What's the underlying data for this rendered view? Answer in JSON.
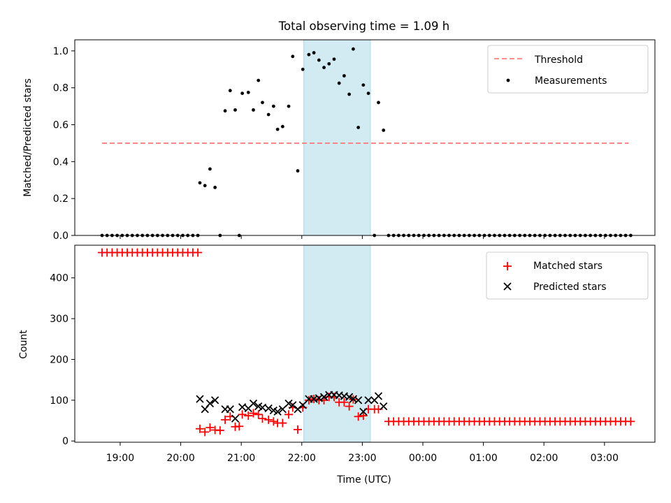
{
  "figure": {
    "title": "Total observing time = 1.09 h",
    "xlabel": "Time (UTC)",
    "colors": {
      "shade": "#add8e6",
      "threshold": "#ff7f7f",
      "measurements": "#000000",
      "matched": "#ff0000",
      "predicted": "#000000"
    }
  },
  "chart_data": [
    {
      "type": "scatter",
      "title": "Total observing time = 1.09 h",
      "xlabel": "",
      "ylabel": "Matched/Predicted stars",
      "x_range": [
        "18:15",
        "03:50"
      ],
      "ylim": [
        0,
        1.06
      ],
      "yticks": [
        0.0,
        0.2,
        0.4,
        0.6,
        0.8,
        1.0
      ],
      "ytick_labels": [
        "0.0",
        "0.2",
        "0.4",
        "0.6",
        "0.8",
        "1.0"
      ],
      "grid": false,
      "legend_position": "top-right",
      "shaded_interval": [
        "22:02",
        "23:08"
      ],
      "threshold": {
        "name": "Threshold",
        "value": 0.5,
        "x_start": "18:42",
        "x_end": "03:24",
        "style": "dashed"
      },
      "series": [
        {
          "name": "Measurements",
          "marker": "dot",
          "points": [
            [
              "18:42",
              0
            ],
            [
              "18:47",
              0
            ],
            [
              "18:52",
              0
            ],
            [
              "18:57",
              0
            ],
            [
              "19:02",
              0
            ],
            [
              "19:07",
              0
            ],
            [
              "19:12",
              0
            ],
            [
              "19:17",
              0
            ],
            [
              "19:22",
              0
            ],
            [
              "19:27",
              0
            ],
            [
              "19:32",
              0
            ],
            [
              "19:37",
              0
            ],
            [
              "19:42",
              0
            ],
            [
              "19:47",
              0
            ],
            [
              "19:52",
              0
            ],
            [
              "19:57",
              0
            ],
            [
              "20:02",
              0
            ],
            [
              "20:07",
              0
            ],
            [
              "20:12",
              0
            ],
            [
              "20:17",
              0
            ],
            [
              "20:19",
              0.285
            ],
            [
              "20:24",
              0.27
            ],
            [
              "20:29",
              0.36
            ],
            [
              "20:34",
              0.26
            ],
            [
              "20:39",
              0
            ],
            [
              "20:44",
              0.675
            ],
            [
              "20:49",
              0.785
            ],
            [
              "20:54",
              0.68
            ],
            [
              "20:58",
              0
            ],
            [
              "21:01",
              0.77
            ],
            [
              "21:07",
              0.775
            ],
            [
              "21:12",
              0.68
            ],
            [
              "21:17",
              0.84
            ],
            [
              "21:21",
              0.72
            ],
            [
              "21:27",
              0.655
            ],
            [
              "21:32",
              0.7
            ],
            [
              "21:36",
              0.575
            ],
            [
              "21:41",
              0.59
            ],
            [
              "21:47",
              0.7
            ],
            [
              "21:51",
              0.97
            ],
            [
              "21:56",
              0.35
            ],
            [
              "22:01",
              0.9
            ],
            [
              "22:07",
              0.98
            ],
            [
              "22:12",
              0.99
            ],
            [
              "22:17",
              0.95
            ],
            [
              "22:22",
              0.91
            ],
            [
              "22:27",
              0.93
            ],
            [
              "22:32",
              0.955
            ],
            [
              "22:37",
              0.825
            ],
            [
              "22:42",
              0.865
            ],
            [
              "22:47",
              0.765
            ],
            [
              "22:51",
              1.01
            ],
            [
              "22:56",
              0.585
            ],
            [
              "23:01",
              0.815
            ],
            [
              "23:06",
              0.77
            ],
            [
              "23:12",
              0
            ],
            [
              "23:16",
              0.72
            ],
            [
              "23:21",
              0.57
            ],
            [
              "23:26",
              0
            ],
            [
              "23:31",
              0
            ],
            [
              "23:36",
              0
            ],
            [
              "23:41",
              0
            ],
            [
              "23:46",
              0
            ],
            [
              "23:51",
              0
            ],
            [
              "23:56",
              0
            ],
            [
              "00:01",
              0
            ],
            [
              "00:06",
              0
            ],
            [
              "00:11",
              0
            ],
            [
              "00:16",
              0
            ],
            [
              "00:21",
              0
            ],
            [
              "00:26",
              0
            ],
            [
              "00:31",
              0
            ],
            [
              "00:36",
              0
            ],
            [
              "00:41",
              0
            ],
            [
              "00:46",
              0
            ],
            [
              "00:51",
              0
            ],
            [
              "00:56",
              0
            ],
            [
              "01:01",
              0
            ],
            [
              "01:06",
              0
            ],
            [
              "01:11",
              0
            ],
            [
              "01:16",
              0
            ],
            [
              "01:21",
              0
            ],
            [
              "01:26",
              0
            ],
            [
              "01:31",
              0
            ],
            [
              "01:36",
              0
            ],
            [
              "01:41",
              0
            ],
            [
              "01:46",
              0
            ],
            [
              "01:51",
              0
            ],
            [
              "01:56",
              0
            ],
            [
              "02:01",
              0
            ],
            [
              "02:06",
              0
            ],
            [
              "02:11",
              0
            ],
            [
              "02:16",
              0
            ],
            [
              "02:21",
              0
            ],
            [
              "02:26",
              0
            ],
            [
              "02:31",
              0
            ],
            [
              "02:36",
              0
            ],
            [
              "02:41",
              0
            ],
            [
              "02:46",
              0
            ],
            [
              "02:51",
              0
            ],
            [
              "02:56",
              0
            ],
            [
              "03:01",
              0
            ],
            [
              "03:06",
              0
            ],
            [
              "03:11",
              0
            ],
            [
              "03:16",
              0
            ],
            [
              "03:21",
              0
            ],
            [
              "03:26",
              0
            ]
          ]
        }
      ]
    },
    {
      "type": "scatter",
      "title": "",
      "xlabel": "Time (UTC)",
      "ylabel": "Count",
      "x_range": [
        "18:15",
        "03:50"
      ],
      "ylim": [
        -3,
        480
      ],
      "yticks": [
        0,
        100,
        200,
        300,
        400
      ],
      "ytick_labels": [
        "0",
        "100",
        "200",
        "300",
        "400"
      ],
      "xticks": [
        "19:00",
        "20:00",
        "21:00",
        "22:00",
        "23:00",
        "00:00",
        "01:00",
        "02:00",
        "03:00"
      ],
      "grid": false,
      "legend_position": "top-right",
      "shaded_interval": [
        "22:02",
        "23:08"
      ],
      "series": [
        {
          "name": "Matched stars",
          "marker": "plus",
          "points": [
            [
              "18:42",
              462
            ],
            [
              "18:47",
              462
            ],
            [
              "18:52",
              462
            ],
            [
              "18:57",
              462
            ],
            [
              "19:02",
              462
            ],
            [
              "19:07",
              462
            ],
            [
              "19:12",
              462
            ],
            [
              "19:17",
              462
            ],
            [
              "19:22",
              462
            ],
            [
              "19:27",
              462
            ],
            [
              "19:32",
              462
            ],
            [
              "19:37",
              462
            ],
            [
              "19:42",
              462
            ],
            [
              "19:47",
              462
            ],
            [
              "19:52",
              462
            ],
            [
              "19:57",
              462
            ],
            [
              "20:02",
              462
            ],
            [
              "20:07",
              462
            ],
            [
              "20:12",
              462
            ],
            [
              "20:17",
              462
            ],
            [
              "20:19",
              30
            ],
            [
              "20:24",
              22
            ],
            [
              "20:29",
              33
            ],
            [
              "20:34",
              27
            ],
            [
              "20:39",
              26
            ],
            [
              "20:44",
              52
            ],
            [
              "20:49",
              60
            ],
            [
              "20:54",
              35
            ],
            [
              "20:58",
              36
            ],
            [
              "21:01",
              65
            ],
            [
              "21:07",
              62
            ],
            [
              "21:12",
              68
            ],
            [
              "21:17",
              65
            ],
            [
              "21:21",
              55
            ],
            [
              "21:27",
              52
            ],
            [
              "21:32",
              48
            ],
            [
              "21:36",
              44
            ],
            [
              "21:41",
              44
            ],
            [
              "21:47",
              65
            ],
            [
              "21:51",
              82
            ],
            [
              "21:56",
              28
            ],
            [
              "22:01",
              82
            ],
            [
              "22:07",
              100
            ],
            [
              "22:12",
              103
            ],
            [
              "22:17",
              100
            ],
            [
              "22:22",
              100
            ],
            [
              "22:27",
              108
            ],
            [
              "22:32",
              108
            ],
            [
              "22:37",
              95
            ],
            [
              "22:42",
              95
            ],
            [
              "22:47",
              85
            ],
            [
              "22:51",
              102
            ],
            [
              "22:56",
              60
            ],
            [
              "23:01",
              62
            ],
            [
              "23:06",
              78
            ],
            [
              "23:12",
              78
            ],
            [
              "23:16",
              78
            ],
            [
              "23:26",
              48
            ],
            [
              "23:31",
              48
            ],
            [
              "23:36",
              48
            ],
            [
              "23:41",
              48
            ],
            [
              "23:46",
              48
            ],
            [
              "23:51",
              48
            ],
            [
              "23:56",
              48
            ],
            [
              "00:01",
              48
            ],
            [
              "00:06",
              48
            ],
            [
              "00:11",
              48
            ],
            [
              "00:16",
              48
            ],
            [
              "00:21",
              48
            ],
            [
              "00:26",
              48
            ],
            [
              "00:31",
              48
            ],
            [
              "00:36",
              48
            ],
            [
              "00:41",
              48
            ],
            [
              "00:46",
              48
            ],
            [
              "00:51",
              48
            ],
            [
              "00:56",
              48
            ],
            [
              "01:01",
              48
            ],
            [
              "01:06",
              48
            ],
            [
              "01:11",
              48
            ],
            [
              "01:16",
              48
            ],
            [
              "01:21",
              48
            ],
            [
              "01:26",
              48
            ],
            [
              "01:31",
              48
            ],
            [
              "01:36",
              48
            ],
            [
              "01:41",
              48
            ],
            [
              "01:46",
              48
            ],
            [
              "01:51",
              48
            ],
            [
              "01:56",
              48
            ],
            [
              "02:01",
              48
            ],
            [
              "02:06",
              48
            ],
            [
              "02:11",
              48
            ],
            [
              "02:16",
              48
            ],
            [
              "02:21",
              48
            ],
            [
              "02:26",
              48
            ],
            [
              "02:31",
              48
            ],
            [
              "02:36",
              48
            ],
            [
              "02:41",
              48
            ],
            [
              "02:46",
              48
            ],
            [
              "02:51",
              48
            ],
            [
              "02:56",
              48
            ],
            [
              "03:01",
              48
            ],
            [
              "03:06",
              48
            ],
            [
              "03:11",
              48
            ],
            [
              "03:16",
              48
            ],
            [
              "03:21",
              48
            ],
            [
              "03:26",
              48
            ]
          ]
        },
        {
          "name": "Predicted stars",
          "marker": "x",
          "points": [
            [
              "20:19",
              103
            ],
            [
              "20:24",
              78
            ],
            [
              "20:29",
              92
            ],
            [
              "20:34",
              100
            ],
            [
              "20:44",
              78
            ],
            [
              "20:49",
              78
            ],
            [
              "20:54",
              55
            ],
            [
              "21:01",
              83
            ],
            [
              "21:07",
              80
            ],
            [
              "21:12",
              92
            ],
            [
              "21:17",
              85
            ],
            [
              "21:21",
              82
            ],
            [
              "21:27",
              80
            ],
            [
              "21:32",
              75
            ],
            [
              "21:36",
              72
            ],
            [
              "21:41",
              78
            ],
            [
              "21:47",
              92
            ],
            [
              "21:51",
              88
            ],
            [
              "21:56",
              78
            ],
            [
              "22:01",
              88
            ],
            [
              "22:07",
              103
            ],
            [
              "22:12",
              103
            ],
            [
              "22:17",
              105
            ],
            [
              "22:22",
              108
            ],
            [
              "22:27",
              113
            ],
            [
              "22:32",
              113
            ],
            [
              "22:37",
              112
            ],
            [
              "22:42",
              110
            ],
            [
              "22:47",
              108
            ],
            [
              "22:51",
              103
            ],
            [
              "22:56",
              100
            ],
            [
              "23:01",
              72
            ],
            [
              "23:06",
              100
            ],
            [
              "23:12",
              100
            ],
            [
              "23:16",
              110
            ],
            [
              "23:21",
              85
            ]
          ]
        }
      ]
    }
  ]
}
